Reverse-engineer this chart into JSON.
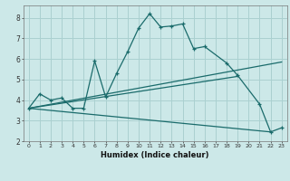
{
  "xlabel": "Humidex (Indice chaleur)",
  "bg_color": "#cce8e8",
  "grid_color": "#aad0d0",
  "line_color": "#1a6b6b",
  "xlim": [
    -0.5,
    23.5
  ],
  "ylim": [
    2.0,
    8.6
  ],
  "xticks": [
    0,
    1,
    2,
    3,
    4,
    5,
    6,
    7,
    8,
    9,
    10,
    11,
    12,
    13,
    14,
    15,
    16,
    17,
    18,
    19,
    20,
    21,
    22,
    23
  ],
  "yticks": [
    2,
    3,
    4,
    5,
    6,
    7,
    8
  ],
  "main_line": {
    "x": [
      0,
      1,
      2,
      3,
      4,
      5,
      6,
      7,
      8,
      9,
      10,
      11,
      12,
      13,
      14,
      15,
      16,
      18,
      19,
      21,
      22,
      23
    ],
    "y": [
      3.6,
      4.3,
      4.0,
      4.1,
      3.6,
      3.6,
      5.9,
      4.15,
      5.3,
      6.35,
      7.5,
      8.2,
      7.55,
      7.6,
      7.7,
      6.5,
      6.6,
      5.8,
      5.2,
      3.8,
      2.45,
      2.65
    ]
  },
  "trend_lines": [
    {
      "x": [
        0,
        23
      ],
      "y": [
        3.6,
        5.85
      ]
    },
    {
      "x": [
        0,
        19
      ],
      "y": [
        3.6,
        5.15
      ]
    },
    {
      "x": [
        0,
        22
      ],
      "y": [
        3.6,
        2.45
      ]
    }
  ]
}
